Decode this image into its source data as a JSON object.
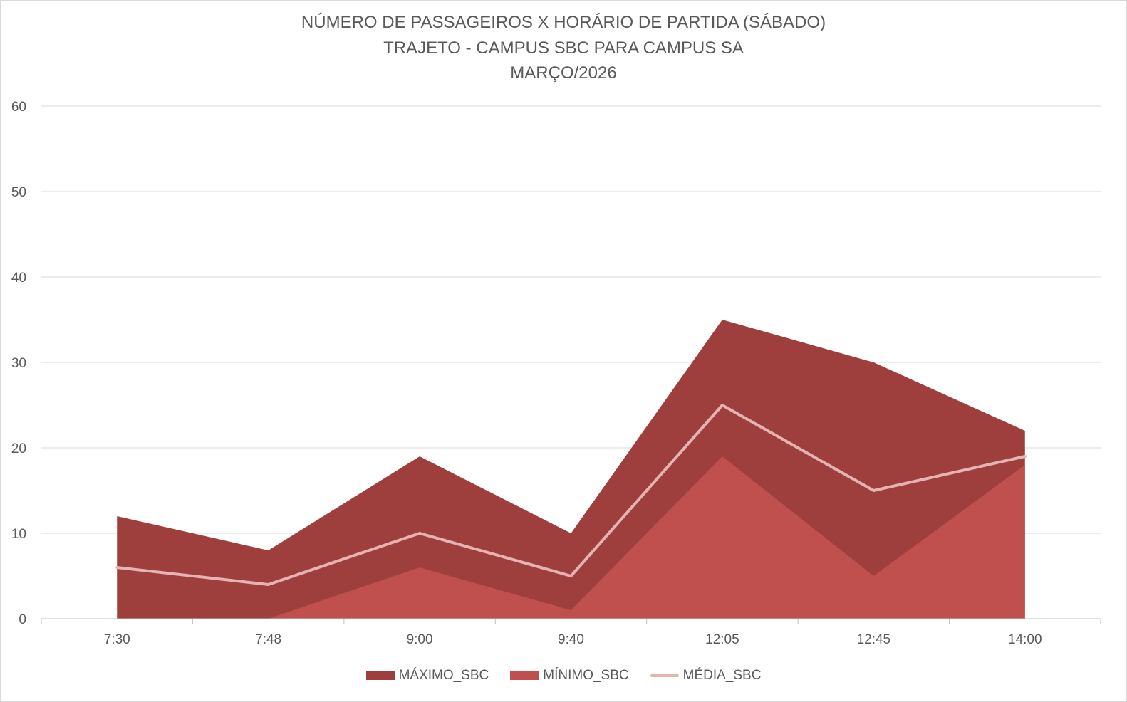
{
  "chart_data": {
    "type": "area",
    "title_lines": [
      "NÚMERO DE PASSAGEIROS X HORÁRIO DE PARTIDA (SÁBADO)",
      "TRAJETO - CAMPUS SBC PARA CAMPUS SA",
      "MARÇO/2026"
    ],
    "categories": [
      "7:30",
      "7:48",
      "9:00",
      "9:40",
      "12:05",
      "12:45",
      "14:00"
    ],
    "ylim": [
      0,
      60
    ],
    "yticks": [
      0,
      10,
      20,
      30,
      40,
      50,
      60
    ],
    "grid": true,
    "legend_position": "bottom",
    "series": [
      {
        "name": "MÁXIMO_SBC",
        "kind": "area",
        "color": "#9e3f3d",
        "values": [
          12,
          8,
          19,
          10,
          35,
          30,
          22
        ]
      },
      {
        "name": "MÍNIMO_SBC",
        "kind": "area",
        "color": "#c0504d",
        "values": [
          0,
          0,
          6,
          1,
          19,
          5,
          18
        ]
      },
      {
        "name": "MÉDIA_SBC",
        "kind": "line",
        "color": "#e4b3b2",
        "values": [
          6,
          4,
          10,
          5,
          25,
          15,
          19
        ]
      }
    ]
  }
}
